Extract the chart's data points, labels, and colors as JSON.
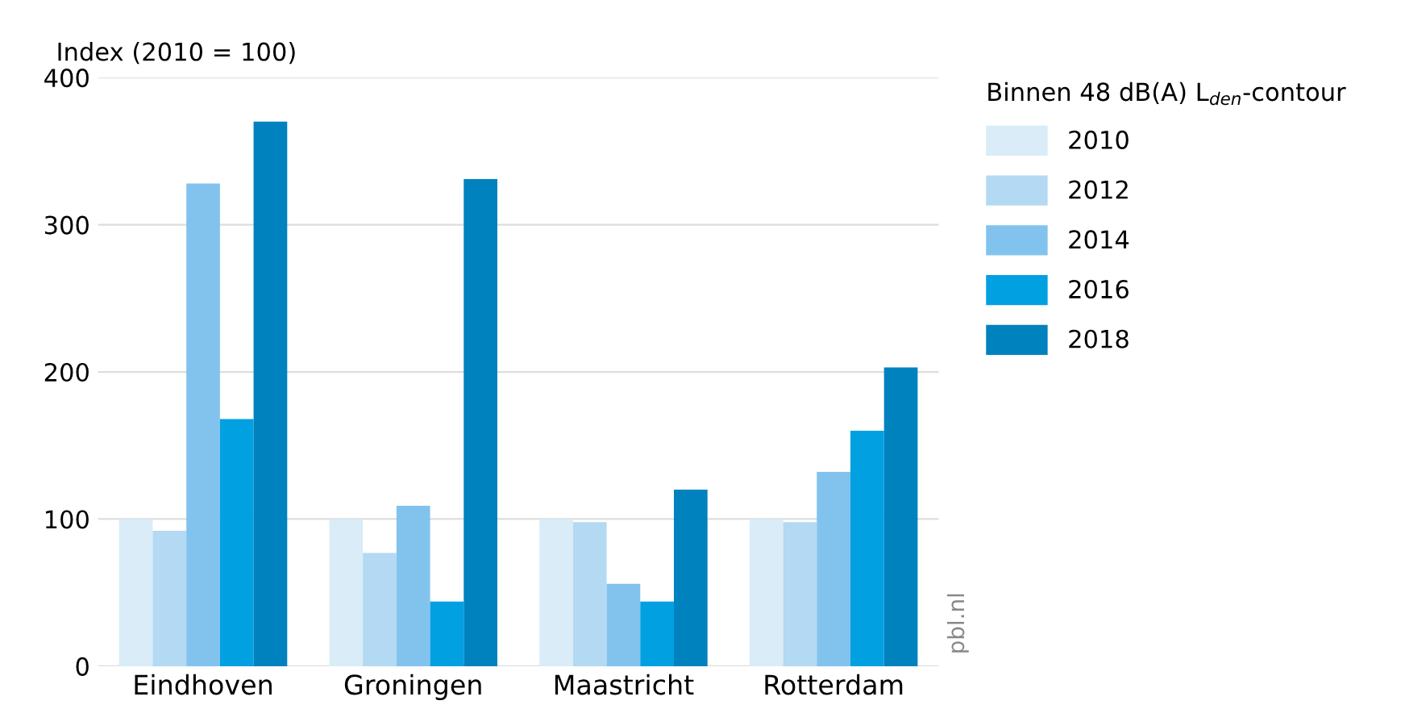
{
  "chart_data": {
    "type": "bar",
    "ylabel": "Index (2010 = 100)",
    "legend_title": "Binnen 48 dB(A) L$_{den}$-contour",
    "categories": [
      "Eindhoven",
      "Groningen",
      "Maastricht",
      "Rotterdam"
    ],
    "series": [
      {
        "name": "2010",
        "color": "#d9ecf8",
        "values": [
          100,
          100,
          100,
          100
        ]
      },
      {
        "name": "2012",
        "color": "#b3d9f3",
        "values": [
          92,
          77,
          98,
          98
        ]
      },
      {
        "name": "2014",
        "color": "#82c3ee",
        "values": [
          328,
          109,
          56,
          132
        ]
      },
      {
        "name": "2016",
        "color": "#00a0e1",
        "values": [
          168,
          44,
          44,
          160
        ]
      },
      {
        "name": "2018",
        "color": "#0082bf",
        "values": [
          370,
          331,
          120,
          203
        ]
      }
    ],
    "ylim": [
      0,
      400
    ],
    "yticks": [
      0,
      100,
      200,
      300,
      400
    ],
    "grid": "y",
    "legend": "top right",
    "annotations": [
      "pbl.nl"
    ]
  }
}
